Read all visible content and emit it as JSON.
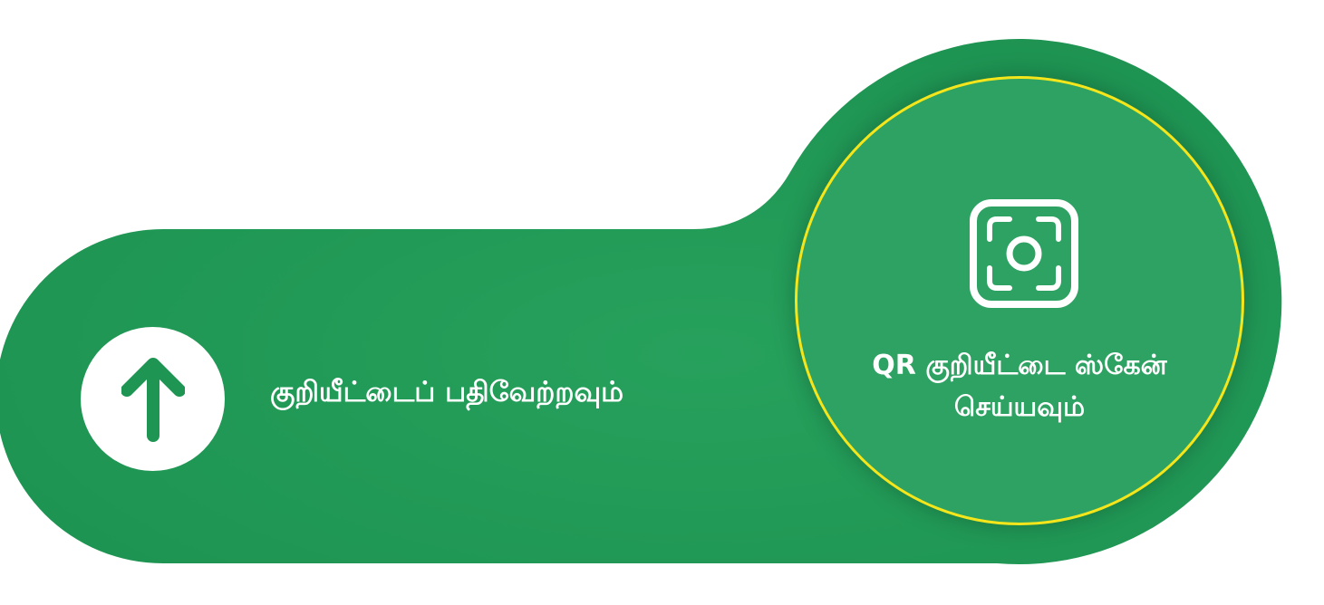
{
  "colors": {
    "brand_green": "#1f9553",
    "highlight_green": "#2da263",
    "ring_yellow": "#f5e61c",
    "text": "#ffffff"
  },
  "upload": {
    "icon": "arrow-up-icon",
    "label": "குறியீட்டைப் பதிவேற்றவும்"
  },
  "scan": {
    "icon": "scan-qr-icon",
    "label_line1": "QR குறியீட்டை ஸ்கேன்",
    "label_line2": "செய்யவும்"
  }
}
